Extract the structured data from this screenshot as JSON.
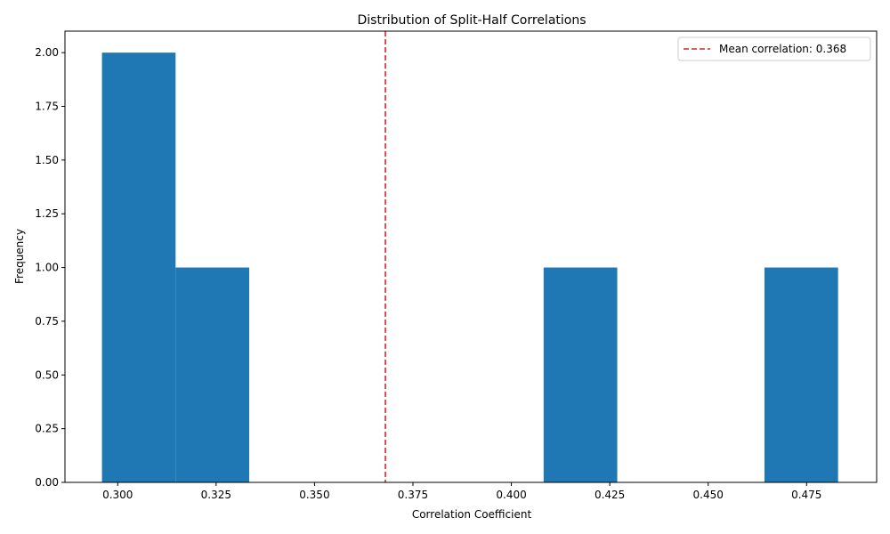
{
  "chart_data": {
    "type": "bar",
    "title": "Distribution of Split-Half Correlations",
    "xlabel": "Correlation Coefficient",
    "ylabel": "Frequency",
    "xlim": [
      0.2866,
      0.4928
    ],
    "ylim": [
      0,
      2.1
    ],
    "xticks": [
      0.3,
      0.325,
      0.35,
      0.375,
      0.4,
      0.425,
      0.45,
      0.475
    ],
    "xtick_labels": [
      "0.300",
      "0.325",
      "0.350",
      "0.375",
      "0.400",
      "0.425",
      "0.450",
      "0.475"
    ],
    "yticks": [
      0,
      0.25,
      0.5,
      0.75,
      1.0,
      1.25,
      1.5,
      1.75,
      2.0
    ],
    "ytick_labels": [
      "0.00",
      "0.25",
      "0.50",
      "0.75",
      "1.00",
      "1.25",
      "1.50",
      "1.75",
      "2.00"
    ],
    "bins": [
      {
        "x0": 0.296,
        "x1": 0.3147,
        "count": 2
      },
      {
        "x0": 0.3147,
        "x1": 0.3334,
        "count": 1
      },
      {
        "x0": 0.3334,
        "x1": 0.3521,
        "count": 0
      },
      {
        "x0": 0.3521,
        "x1": 0.3708,
        "count": 0
      },
      {
        "x0": 0.3708,
        "x1": 0.3895,
        "count": 0
      },
      {
        "x0": 0.3895,
        "x1": 0.4082,
        "count": 0
      },
      {
        "x0": 0.4082,
        "x1": 0.4269,
        "count": 1
      },
      {
        "x0": 0.4269,
        "x1": 0.4456,
        "count": 0
      },
      {
        "x0": 0.4456,
        "x1": 0.4643,
        "count": 0
      },
      {
        "x0": 0.4643,
        "x1": 0.483,
        "count": 1
      }
    ],
    "bar_color": "#1f77b4",
    "mean_line": {
      "value": 0.368,
      "color": "#d62728",
      "style": "dashed"
    },
    "legend": {
      "position": "top-right",
      "label": "Mean correlation: 0.368"
    }
  }
}
